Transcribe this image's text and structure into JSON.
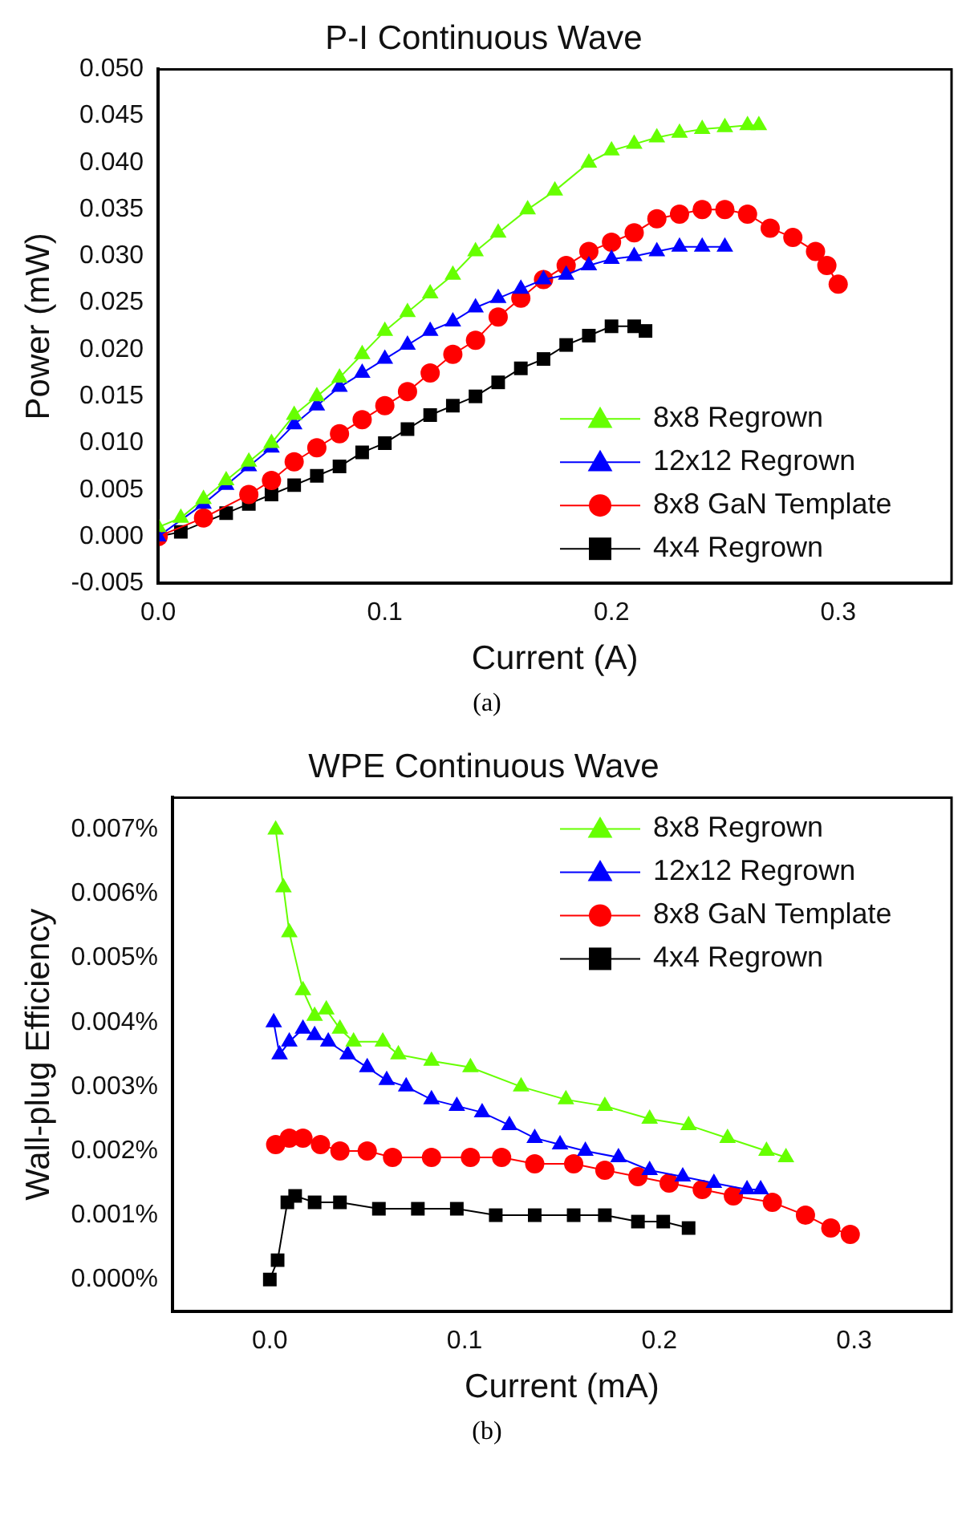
{
  "chart_data": [
    {
      "type": "line",
      "title": "P-I Continuous Wave",
      "xlabel": "Current (A)",
      "ylabel": "Power (mW)",
      "annotations": [
        "(a)"
      ],
      "legend": "bottom right",
      "xlim": [
        0,
        0.35
      ],
      "xticks": [
        {
          "value": 0,
          "label": "0.0"
        },
        0.1,
        0.2,
        0.3
      ],
      "ylim": [
        -0.005,
        0.05
      ],
      "yticks": [
        {
          "value": -0.005,
          "label": "-0.005"
        },
        {
          "value": 0,
          "label": "0.000"
        },
        0.005,
        {
          "value": 0.01,
          "label": "0.010"
        },
        0.015,
        {
          "value": 0.02,
          "label": "0.020"
        },
        0.025,
        {
          "value": 0.03,
          "label": "0.030"
        },
        0.035,
        {
          "value": 0.04,
          "label": "0.040"
        },
        0.045,
        {
          "value": 0.05,
          "label": "0.050"
        }
      ],
      "series": [
        {
          "name": "8x8 Regrown",
          "color": "#66ff00",
          "marker": "triangle",
          "x": [
            0,
            0.01,
            0.02,
            0.03,
            0.04,
            0.05,
            0.06,
            0.07,
            0.08,
            0.09,
            0.1,
            0.11,
            0.12,
            0.13,
            0.14,
            0.15,
            0.163,
            0.175,
            0.19,
            0.2,
            0.21,
            0.22,
            0.23,
            0.24,
            0.25,
            0.26,
            0.265
          ],
          "values": [
            0.001,
            0.002,
            0.004,
            0.006,
            0.008,
            0.01,
            0.013,
            0.015,
            0.017,
            0.0195,
            0.022,
            0.024,
            0.026,
            0.028,
            0.0305,
            0.0325,
            0.035,
            0.037,
            0.04,
            0.0413,
            0.042,
            0.0427,
            0.0432,
            0.0436,
            0.0438,
            0.044,
            0.044
          ]
        },
        {
          "name": "12x12 Regrown",
          "color": "#0000ff",
          "marker": "triangle",
          "x": [
            0,
            0.01,
            0.02,
            0.03,
            0.04,
            0.05,
            0.06,
            0.07,
            0.08,
            0.09,
            0.1,
            0.11,
            0.12,
            0.13,
            0.14,
            0.15,
            0.16,
            0.17,
            0.18,
            0.19,
            0.2,
            0.21,
            0.22,
            0.23,
            0.24,
            0.25
          ],
          "values": [
            0,
            null,
            0.0035,
            0.0055,
            0.0075,
            0.0095,
            0.012,
            0.014,
            0.016,
            0.0175,
            0.019,
            0.0205,
            0.022,
            0.023,
            0.0245,
            0.0255,
            0.0265,
            0.0275,
            0.028,
            0.029,
            0.0297,
            0.03,
            0.0305,
            0.031,
            0.031,
            0.031
          ]
        },
        {
          "name": "8x8 GaN Template",
          "color": "#ff0000",
          "marker": "circle",
          "x": [
            0,
            0.02,
            0.04,
            0.05,
            0.06,
            0.07,
            0.08,
            0.09,
            0.1,
            0.11,
            0.12,
            0.13,
            0.14,
            0.15,
            0.16,
            0.17,
            0.18,
            0.19,
            0.2,
            0.21,
            0.22,
            0.23,
            0.24,
            0.25,
            0.26,
            0.27,
            0.28,
            0.29,
            0.295,
            0.3
          ],
          "values": [
            0,
            0.002,
            0.0045,
            0.006,
            0.008,
            0.0095,
            0.011,
            0.0125,
            0.014,
            0.0155,
            0.0175,
            0.0195,
            0.021,
            0.0235,
            0.0255,
            0.0275,
            0.029,
            0.0305,
            0.0315,
            0.0325,
            0.034,
            0.0345,
            0.035,
            0.035,
            0.0345,
            0.033,
            0.032,
            0.0305,
            0.029,
            0.027
          ]
        },
        {
          "name": "4x4 Regrown",
          "color": "#000000",
          "marker": "square",
          "x": [
            0,
            0.01,
            0.02,
            0.03,
            0.04,
            0.05,
            0.06,
            0.07,
            0.08,
            0.09,
            0.1,
            0.11,
            0.12,
            0.13,
            0.14,
            0.15,
            0.16,
            0.17,
            0.18,
            0.19,
            0.2,
            0.21,
            0.215
          ],
          "values": [
            0,
            0.0005,
            null,
            0.0025,
            0.0035,
            0.0045,
            0.0055,
            0.0065,
            0.0075,
            0.009,
            0.01,
            0.0115,
            0.013,
            0.014,
            0.015,
            0.0165,
            0.018,
            0.019,
            0.0205,
            0.0215,
            0.0225,
            0.0225,
            0.022
          ]
        }
      ]
    },
    {
      "type": "line",
      "title": "WPE Continuous Wave",
      "xlabel": "Current (mA)",
      "ylabel": "Wall-plug Efficiency",
      "annotations": [
        "(b)"
      ],
      "legend": "top right",
      "xlim": [
        -0.05,
        0.35
      ],
      "xticks": [
        {
          "value": 0,
          "label": "0.0"
        },
        0.1,
        0.2,
        0.3
      ],
      "ylim": [
        -0.0005,
        0.0075
      ],
      "yticks": [
        {
          "value": 0,
          "label": "0.000%"
        },
        {
          "value": 0.001,
          "label": "0.001%"
        },
        {
          "value": 0.002,
          "label": "0.002%"
        },
        {
          "value": 0.003,
          "label": "0.003%"
        },
        {
          "value": 0.004,
          "label": "0.004%"
        },
        {
          "value": 0.005,
          "label": "0.005%"
        },
        {
          "value": 0.006,
          "label": "0.006%"
        },
        {
          "value": 0.007,
          "label": "0.007%"
        }
      ],
      "series": [
        {
          "name": "8x8 Regrown",
          "color": "#66ff00",
          "marker": "triangle",
          "x": [
            0.003,
            0.007,
            0.01,
            0.017,
            0.023,
            0.029,
            0.036,
            0.043,
            0.058,
            0.066,
            0.083,
            0.103,
            0.129,
            0.152,
            0.172,
            0.195,
            0.215,
            0.235,
            0.255,
            0.265
          ],
          "values": [
            0.007,
            0.0061,
            0.0054,
            0.0045,
            0.0041,
            0.0042,
            0.0039,
            0.0037,
            0.0037,
            0.0035,
            0.0034,
            0.0033,
            0.003,
            0.0028,
            0.0027,
            0.0025,
            0.0024,
            0.0022,
            0.002,
            0.0019
          ]
        },
        {
          "name": "12x12 Regrown",
          "color": "#0000ff",
          "marker": "triangle",
          "x": [
            0.002,
            0.005,
            0.01,
            0.017,
            0.023,
            0.03,
            0.04,
            0.05,
            0.06,
            0.07,
            0.083,
            0.096,
            0.109,
            0.123,
            0.136,
            0.149,
            0.162,
            0.179,
            0.195,
            0.212,
            0.228,
            0.245,
            0.252
          ],
          "values": [
            0.004,
            0.0035,
            0.0037,
            0.0039,
            0.0038,
            0.0037,
            0.0035,
            0.0033,
            0.0031,
            0.003,
            0.0028,
            0.0027,
            0.0026,
            0.0024,
            0.0022,
            0.0021,
            0.002,
            0.0019,
            0.0017,
            0.0016,
            0.0015,
            0.0014,
            0.0014
          ]
        },
        {
          "name": "8x8 GaN Template",
          "color": "#ff0000",
          "marker": "circle",
          "x": [
            0.003,
            0.01,
            0.017,
            0.026,
            0.036,
            0.05,
            0.063,
            0.083,
            0.103,
            0.119,
            0.136,
            0.156,
            0.172,
            0.189,
            0.205,
            0.222,
            0.238,
            0.258,
            0.275,
            0.288,
            0.298
          ],
          "values": [
            0.0021,
            0.0022,
            0.0022,
            0.0021,
            0.002,
            0.002,
            0.0019,
            0.0019,
            0.0019,
            0.0019,
            0.0018,
            0.0018,
            0.0017,
            0.0016,
            0.0015,
            0.0014,
            0.0013,
            0.0012,
            0.001,
            0.0008,
            0.0007
          ]
        },
        {
          "name": "4x4 Regrown",
          "color": "#000000",
          "marker": "square",
          "x": [
            0,
            0.004,
            0.009,
            0.013,
            0.023,
            0.036,
            0.056,
            0.076,
            0.096,
            0.116,
            0.136,
            0.156,
            0.172,
            0.189,
            0.202,
            0.215
          ],
          "values": [
            0,
            0.0003,
            0.0012,
            0.0013,
            0.0012,
            0.0012,
            0.0011,
            0.0011,
            0.0011,
            0.001,
            0.001,
            0.001,
            0.001,
            0.0009,
            0.0009,
            0.0008
          ]
        }
      ]
    }
  ]
}
